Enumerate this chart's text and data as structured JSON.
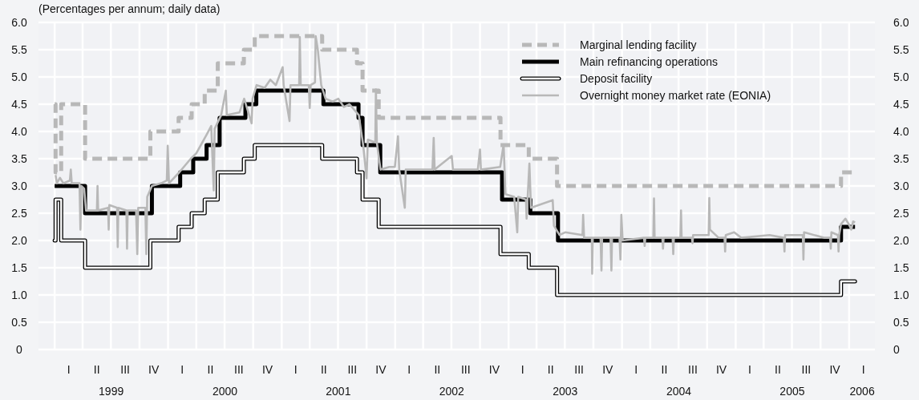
{
  "chart_data": {
    "type": "step",
    "subtitle": "(Percentages per annum; daily data)",
    "xlim": [
      "1998-11-10",
      "2006-03-25"
    ],
    "ylim": [
      0,
      6
    ],
    "yticks": [
      0,
      {
        "value": 0.5,
        "label": "0.5"
      },
      {
        "value": 1,
        "label": "1.0"
      },
      {
        "value": 1.5,
        "label": "1.5"
      },
      {
        "value": 2,
        "label": "2.0"
      },
      {
        "value": 2.5,
        "label": "2.5"
      },
      {
        "value": 3,
        "label": "3.0"
      },
      {
        "value": 3.5,
        "label": "3.5"
      },
      {
        "value": 4,
        "label": "4.0"
      },
      {
        "value": 4.5,
        "label": "4.5"
      },
      {
        "value": 5,
        "label": "5.0"
      },
      {
        "value": 5.5,
        "label": "5.5"
      },
      {
        "value": 6,
        "label": "6.0"
      }
    ],
    "y2lim": [
      0,
      6
    ],
    "y2ticks": [
      0,
      {
        "value": 0.5,
        "label": "0.5"
      },
      {
        "value": 1,
        "label": "1.0"
      },
      {
        "value": 1.5,
        "label": "1.5"
      },
      {
        "value": 2,
        "label": "2.0"
      },
      {
        "value": 2.5,
        "label": "2.5"
      },
      {
        "value": 3,
        "label": "3.0"
      },
      {
        "value": 3.5,
        "label": "3.5"
      },
      {
        "value": 4,
        "label": "4.0"
      },
      {
        "value": 4.5,
        "label": "4.5"
      },
      {
        "value": 5,
        "label": "5.0"
      },
      {
        "value": 5.5,
        "label": "5.5"
      },
      {
        "value": 6,
        "label": "6.0"
      }
    ],
    "xticks": [
      {
        "value": "1999-07-02",
        "label": "1999"
      },
      {
        "value": "2000-07-02",
        "label": "2000"
      },
      {
        "value": "2001-07-02",
        "label": "2001"
      },
      {
        "value": "2002-07-02",
        "label": "2002"
      },
      {
        "value": "2003-07-02",
        "label": "2003"
      },
      {
        "value": "2004-07-02",
        "label": "2004"
      },
      {
        "value": "2005-07-02",
        "label": "2005"
      },
      {
        "value": "2006-02-12",
        "label": "2006"
      },
      {
        "value": "1999-01-01",
        "label": null
      },
      {
        "value": "1999-04-01",
        "label": null
      },
      {
        "value": "1999-07-01",
        "label": null
      },
      {
        "value": "1999-10-01",
        "label": null
      },
      {
        "value": "2000-01-01",
        "label": null
      },
      {
        "value": "2000-04-01",
        "label": null
      },
      {
        "value": "2000-07-01",
        "label": null
      },
      {
        "value": "2000-10-01",
        "label": null
      },
      {
        "value": "2001-01-01",
        "label": null
      },
      {
        "value": "2001-04-01",
        "label": null
      },
      {
        "value": "2001-07-01",
        "label": null
      },
      {
        "value": "2001-10-01",
        "label": null
      },
      {
        "value": "2002-01-01",
        "label": null
      },
      {
        "value": "2002-04-01",
        "label": null
      },
      {
        "value": "2002-07-01",
        "label": null
      },
      {
        "value": "2002-10-01",
        "label": null
      },
      {
        "value": "2003-01-01",
        "label": null
      },
      {
        "value": "2003-04-01",
        "label": null
      },
      {
        "value": "2003-07-01",
        "label": null
      },
      {
        "value": "2003-10-01",
        "label": null
      },
      {
        "value": "2004-01-01",
        "label": null
      },
      {
        "value": "2004-04-01",
        "label": null
      },
      {
        "value": "2004-07-01",
        "label": null
      },
      {
        "value": "2004-10-01",
        "label": null
      },
      {
        "value": "2005-01-01",
        "label": null
      },
      {
        "value": "2005-04-01",
        "label": null
      },
      {
        "value": "2005-07-01",
        "label": null
      },
      {
        "value": "2005-10-01",
        "label": null
      },
      {
        "value": "2006-01-01",
        "label": null
      }
    ],
    "annotations": [
      "I",
      "II",
      "III",
      "IV",
      "I",
      "II",
      "III",
      "IV",
      "I",
      "II",
      "III",
      "IV",
      "I",
      "II",
      "III",
      "IV",
      "I",
      "II",
      "III",
      "IV",
      "I",
      "II",
      "III",
      "IV",
      "I",
      "II",
      "III",
      "IV",
      "I"
    ],
    "grid": true,
    "legend": "top right",
    "series": [
      {
        "name": "Marginal lending facility",
        "color": "#b8b8b8",
        "line_style": "dashed",
        "x": [
          "1999-01-01",
          "1999-01-04",
          "1999-01-22",
          "1999-04-09",
          "1999-11-05",
          "2000-02-04",
          "2000-03-17",
          "2000-04-28",
          "2000-06-09",
          "2000-09-01",
          "2000-10-06",
          "2001-05-11",
          "2001-08-31",
          "2001-09-18",
          "2001-11-09",
          "2002-12-06",
          "2003-03-07",
          "2003-06-06",
          "2005-12-06",
          "2006-01-20"
        ],
        "values": [
          4.5,
          3.25,
          4.5,
          3.5,
          4,
          4.25,
          4.5,
          4.75,
          5.25,
          5.5,
          5.75,
          5.5,
          5.25,
          4.75,
          4.25,
          3.75,
          3.5,
          3,
          3.25,
          3.25
        ]
      },
      {
        "name": "Main refinancing operations",
        "color": "#000000",
        "line_style": "solid",
        "x": [
          "1999-01-01",
          "1999-04-09",
          "1999-11-10",
          "2000-02-09",
          "2000-03-22",
          "2000-05-04",
          "2000-06-15",
          "2000-09-06",
          "2000-10-11",
          "2001-05-15",
          "2001-09-05",
          "2001-09-18",
          "2001-11-14",
          "2002-12-11",
          "2003-03-12",
          "2003-06-09",
          "2005-12-06",
          "2006-01-20"
        ],
        "values": [
          3,
          2.5,
          3,
          3.25,
          3.5,
          3.75,
          4.25,
          4.5,
          4.75,
          4.5,
          4.25,
          3.75,
          3.25,
          2.75,
          2.5,
          2,
          2.25,
          2.25
        ]
      },
      {
        "name": "Deposit facility",
        "color": "#000000",
        "line_style": "solid",
        "x": [
          "1999-01-01",
          "1999-01-04",
          "1999-01-22",
          "1999-04-09",
          "1999-11-05",
          "2000-02-04",
          "2000-03-17",
          "2000-04-28",
          "2000-06-09",
          "2000-09-01",
          "2000-10-06",
          "2001-05-11",
          "2001-08-31",
          "2001-09-18",
          "2001-11-09",
          "2002-12-06",
          "2003-03-07",
          "2003-06-06",
          "2005-12-06",
          "2006-01-20"
        ],
        "values": [
          2,
          2.75,
          2,
          1.5,
          2,
          2.25,
          2.5,
          2.75,
          3.25,
          3.5,
          3.75,
          3.5,
          3.25,
          2.75,
          2.25,
          1.75,
          1.5,
          1,
          1.25,
          1.25
        ]
      },
      {
        "name": "Overnight money market rate (EONIA)",
        "type": "line",
        "color": "#b8b8b8",
        "line_style": "solid",
        "x": [
          "1999-01-04",
          "1999-01-08",
          "1999-01-18",
          "1999-01-29",
          "1999-02-19",
          "1999-02-22",
          "1999-02-25",
          "1999-03-22",
          "1999-03-25",
          "1999-03-28",
          "1999-04-06",
          "1999-04-12",
          "1999-05-17",
          "1999-05-19",
          "1999-05-21",
          "1999-06-22",
          "1999-06-24",
          "1999-06-26",
          "1999-07-21",
          "1999-07-23",
          "1999-07-25",
          "1999-08-20",
          "1999-08-22",
          "1999-08-24",
          "1999-09-20",
          "1999-09-24",
          "1999-09-27",
          "1999-10-20",
          "1999-10-23",
          "1999-10-26",
          "1999-11-10",
          "1999-12-10",
          "1999-12-28",
          "1999-12-31",
          "2000-01-04",
          "2000-02-06",
          "2000-03-14",
          "2000-04-01",
          "2000-05-05",
          "2000-05-19",
          "2000-05-27",
          "2000-05-30",
          "2000-06-20",
          "2000-07-05",
          "2000-07-08",
          "2000-08-18",
          "2000-09-02",
          "2000-09-26",
          "2000-09-29",
          "2000-10-12",
          "2000-11-07",
          "2000-11-25",
          "2000-12-13",
          "2001-01-04",
          "2001-01-07",
          "2001-01-26",
          "2001-01-29",
          "2001-02-26",
          "2001-02-28",
          "2001-03-03",
          "2001-03-29",
          "2001-04-01",
          "2001-04-04",
          "2001-04-18",
          "2001-04-20",
          "2001-04-27",
          "2001-05-08",
          "2001-05-22",
          "2001-06-14",
          "2001-07-02",
          "2001-07-20",
          "2001-08-07",
          "2001-09-06",
          "2001-09-20",
          "2001-10-01",
          "2001-10-05",
          "2001-10-29",
          "2001-10-31",
          "2001-11-03",
          "2001-11-15",
          "2001-12-13",
          "2001-12-31",
          "2002-01-10",
          "2002-01-14",
          "2002-02-01",
          "2002-02-04",
          "2002-05-01",
          "2002-05-05",
          "2002-05-08",
          "2002-07-02",
          "2002-07-06",
          "2002-09-24",
          "2002-10-01",
          "2002-10-04",
          "2002-12-05",
          "2002-12-16",
          "2002-12-22",
          "2003-01-19",
          "2003-01-29",
          "2003-02-01",
          "2003-02-26",
          "2003-02-28",
          "2003-03-03",
          "2003-03-09",
          "2003-03-14",
          "2003-05-23",
          "2003-05-27",
          "2003-06-14",
          "2003-07-02",
          "2003-08-27",
          "2003-08-29",
          "2003-09-01",
          "2003-09-26",
          "2003-09-27",
          "2003-09-29",
          "2003-10-24",
          "2003-10-27",
          "2003-10-29",
          "2003-11-25",
          "2003-11-28",
          "2003-11-30",
          "2003-12-24",
          "2003-12-27",
          "2003-12-30",
          "2004-01-03",
          "2004-03-12",
          "2004-03-14",
          "2004-03-16",
          "2004-04-11",
          "2004-04-13",
          "2004-04-15",
          "2004-05-10",
          "2004-05-12",
          "2004-05-14",
          "2004-06-12",
          "2004-06-14",
          "2004-06-16",
          "2004-07-07",
          "2004-07-09",
          "2004-07-11",
          "2004-08-13",
          "2004-08-15",
          "2004-08-17",
          "2004-10-06",
          "2004-10-08",
          "2004-10-10",
          "2004-11-07",
          "2004-11-26",
          "2004-11-28",
          "2004-11-30",
          "2004-12-27",
          "2005-01-19",
          "2005-04-20",
          "2005-06-05",
          "2005-06-07",
          "2005-06-09",
          "2005-08-05",
          "2005-08-07",
          "2005-08-09",
          "2005-10-12",
          "2005-11-01",
          "2005-11-03",
          "2005-11-05",
          "2005-11-26",
          "2005-11-28",
          "2005-11-30",
          "2005-12-06",
          "2005-12-20",
          "2005-12-31",
          "2006-01-08",
          "2006-01-14",
          "2006-01-20"
        ],
        "values": [
          3.2,
          3.05,
          3.15,
          3.05,
          3.1,
          3.3,
          3.05,
          3.05,
          2.2,
          3.0,
          2.95,
          2.55,
          2.55,
          3.0,
          2.55,
          2.6,
          2.2,
          2.65,
          2.6,
          1.88,
          2.6,
          2.55,
          1.85,
          2.55,
          2.55,
          1.75,
          2.6,
          2.6,
          1.75,
          2.8,
          3.0,
          3.05,
          3.1,
          3.74,
          3.05,
          3.25,
          3.5,
          3.6,
          3.95,
          4.1,
          2.92,
          4.05,
          4.3,
          4.75,
          4.3,
          4.35,
          4.6,
          4.15,
          4.6,
          4.85,
          4.8,
          4.95,
          4.85,
          5.18,
          4.85,
          4.19,
          4.85,
          4.85,
          5.73,
          4.85,
          4.85,
          4.43,
          4.85,
          4.9,
          5.75,
          5.5,
          4.85,
          4.6,
          4.55,
          4.6,
          4.45,
          4.5,
          4.3,
          3.75,
          3.14,
          3.85,
          3.8,
          4.77,
          3.8,
          3.3,
          3.35,
          3.35,
          3.91,
          3.3,
          2.6,
          3.3,
          3.3,
          3.88,
          3.3,
          3.55,
          3.3,
          3.3,
          3.67,
          3.3,
          3.35,
          3.76,
          2.85,
          2.8,
          2.15,
          2.8,
          2.75,
          2.4,
          2.75,
          3.41,
          2.6,
          2.74,
          2.27,
          2.1,
          2.15,
          2.1,
          2.47,
          2.05,
          2.05,
          1.39,
          2.05,
          2.05,
          1.45,
          2.05,
          2.05,
          1.45,
          2.05,
          2.05,
          1.65,
          2.47,
          2.0,
          2.05,
          1.9,
          2.05,
          2.05,
          2.77,
          2.05,
          2.05,
          1.85,
          2.05,
          2.05,
          1.75,
          2.05,
          2.05,
          2.55,
          2.05,
          2.05,
          1.95,
          2.1,
          2.1,
          2.78,
          2.2,
          2.05,
          2.05,
          1.8,
          2.1,
          2.15,
          2.05,
          2.1,
          2.05,
          1.8,
          2.1,
          2.1,
          1.65,
          2.15,
          2.05,
          2.05,
          1.85,
          2.15,
          2.1,
          1.8,
          2.1,
          2.3,
          2.4,
          2.3,
          2.2,
          2.35,
          2.33
        ]
      }
    ]
  }
}
